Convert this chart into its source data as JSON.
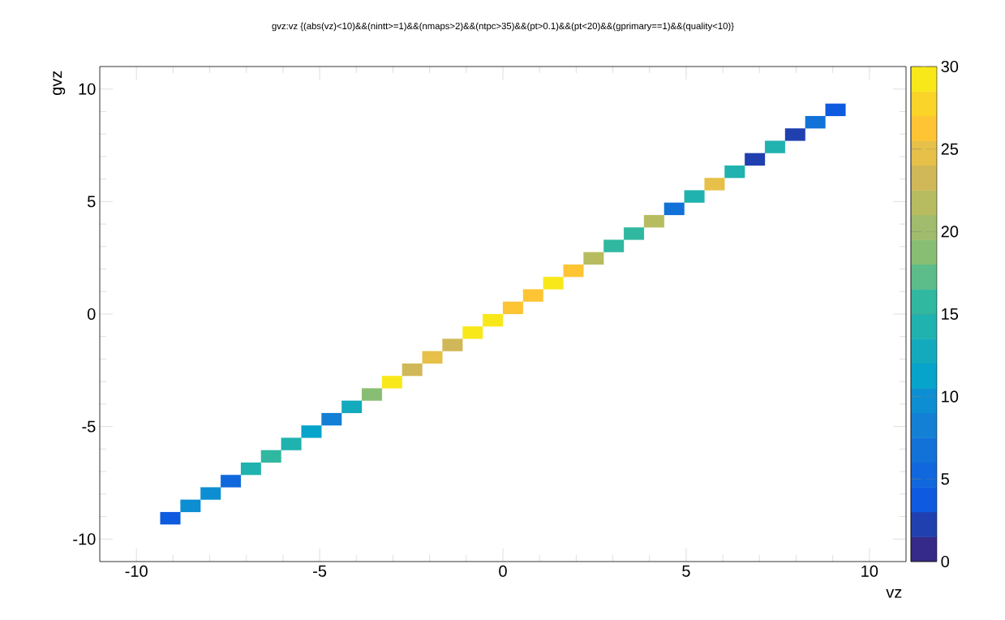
{
  "chart_data": {
    "type": "scatter",
    "title": "gvz:vz {(abs(vz)<10)&&(nintt>=1)&&(nmaps>2)&&(ntpc>35)&&(pt>0.1)&&(pt<20)&&(gprimary==1)&&(quality<10)}",
    "xlabel": "vz",
    "ylabel": "gvz",
    "x": [
      -9.075,
      -8.525,
      -7.975,
      -7.425,
      -6.875,
      -6.325,
      -5.775,
      -5.225,
      -4.675,
      -4.125,
      -3.575,
      -3.025,
      -2.475,
      -1.925,
      -1.375,
      -0.825,
      -0.275,
      0.275,
      0.825,
      1.375,
      1.925,
      2.475,
      3.025,
      3.575,
      4.125,
      4.675,
      5.225,
      5.775,
      6.325,
      6.875,
      7.425,
      7.975,
      8.525,
      9.075
    ],
    "values": [
      -9.075,
      -8.525,
      -7.975,
      -7.425,
      -6.875,
      -6.325,
      -5.775,
      -5.225,
      -4.675,
      -4.125,
      -3.575,
      -3.025,
      -2.475,
      -1.925,
      -1.375,
      -0.825,
      -0.275,
      0.275,
      0.825,
      1.375,
      1.925,
      2.475,
      3.025,
      3.575,
      4.125,
      4.675,
      5.225,
      5.775,
      6.325,
      6.875,
      7.425,
      7.975,
      8.525,
      9.075
    ],
    "cvalues": [
      4,
      10,
      10,
      5,
      14,
      16,
      14,
      11,
      8,
      13,
      19,
      29,
      23,
      25,
      23,
      29,
      29,
      26,
      26,
      29,
      26,
      22,
      16,
      16,
      22,
      7,
      14,
      25,
      14,
      2,
      14,
      2,
      7,
      4
    ],
    "marker": "square",
    "xlim": [
      -11,
      11
    ],
    "ylim": [
      -11,
      11
    ],
    "xticks": [
      -10,
      -5,
      0,
      5,
      10
    ],
    "yticks": [
      -10,
      -5,
      0,
      5,
      10
    ],
    "clim": [
      0,
      30
    ],
    "cticks": [
      0,
      5,
      10,
      15,
      20,
      25,
      30
    ]
  }
}
